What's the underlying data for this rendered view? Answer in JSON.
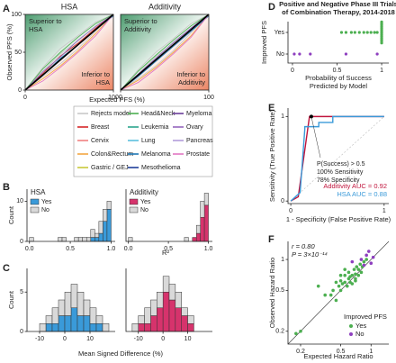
{
  "chart_data": [
    {
      "type": "curves",
      "panel": "A",
      "title": "HSA",
      "xlabel": "Expected PFS (%)",
      "ylabel": "Observed PFS (%)",
      "annotations": [
        [
          "Superior to",
          "HSA"
        ],
        [
          "Inferior to",
          "HSA"
        ]
      ],
      "xlim": [
        0,
        100
      ],
      "ylim": [
        0,
        100
      ],
      "xticks": [
        0,
        100
      ],
      "yticks": [
        0,
        50,
        100
      ],
      "x": [
        0,
        20,
        40,
        60,
        80,
        100
      ],
      "series": [
        {
          "color": "#c8c8c8",
          "values": [
            0,
            25,
            48,
            65,
            85,
            100
          ]
        },
        {
          "color": "#c8c8c8",
          "values": [
            0,
            18,
            35,
            55,
            78,
            100
          ]
        },
        {
          "color": "#c8c8c8",
          "values": [
            0,
            30,
            55,
            72,
            90,
            100
          ]
        },
        {
          "color": "#d62728",
          "values": [
            0,
            22,
            45,
            62,
            82,
            100
          ]
        },
        {
          "color": "#f4a742",
          "values": [
            0,
            15,
            32,
            52,
            75,
            100
          ]
        },
        {
          "color": "#4caf50",
          "values": [
            0,
            28,
            50,
            70,
            88,
            100
          ]
        },
        {
          "color": "#1f77b4",
          "values": [
            0,
            20,
            42,
            60,
            80,
            98
          ]
        },
        {
          "color": "#9467bd",
          "values": [
            0,
            24,
            44,
            66,
            84,
            100
          ]
        },
        {
          "color": "#e377c2",
          "values": [
            0,
            12,
            30,
            50,
            72,
            100
          ]
        }
      ]
    },
    {
      "type": "curves",
      "title": "Additivity",
      "annotations": [
        [
          "Superior to",
          "Additivity"
        ],
        [
          "Inferior to",
          "Additivity"
        ]
      ],
      "xlim": [
        0,
        100
      ],
      "ylim": [
        0,
        100
      ],
      "xticks": [
        0,
        100
      ],
      "x": [
        0,
        20,
        40,
        60,
        80,
        100
      ],
      "series": [
        {
          "color": "#c8c8c8",
          "values": [
            0,
            22,
            44,
            62,
            82,
            100
          ]
        },
        {
          "color": "#c8c8c8",
          "values": [
            0,
            15,
            32,
            52,
            76,
            100
          ]
        },
        {
          "color": "#c8c8c8",
          "values": [
            0,
            27,
            50,
            68,
            88,
            100
          ]
        },
        {
          "color": "#d62728",
          "values": [
            0,
            19,
            40,
            60,
            80,
            100
          ]
        },
        {
          "color": "#f4a742",
          "values": [
            0,
            13,
            30,
            50,
            72,
            100
          ]
        },
        {
          "color": "#4caf50",
          "values": [
            0,
            25,
            46,
            66,
            85,
            100
          ]
        },
        {
          "color": "#1f77b4",
          "values": [
            0,
            18,
            38,
            58,
            78,
            98
          ]
        },
        {
          "color": "#9467bd",
          "values": [
            0,
            21,
            42,
            63,
            82,
            100
          ]
        },
        {
          "color": "#e377c2",
          "values": [
            0,
            10,
            28,
            48,
            70,
            100
          ]
        }
      ]
    },
    {
      "type": "histogram",
      "panel": "B",
      "legend_title": "HSA",
      "xlabel": "R²",
      "ylabel": "Count",
      "xlim": [
        -0.03,
        1.05
      ],
      "ylim": [
        0,
        13
      ],
      "yticks": [
        0,
        10
      ],
      "xticks": [
        {
          "value": 0,
          "label": "0.0"
        },
        {
          "value": 0.5,
          "label": "0.5"
        },
        {
          "value": 1,
          "label": "1.0"
        }
      ],
      "bins": [
        0,
        0.05,
        0.1,
        0.15,
        0.2,
        0.25,
        0.3,
        0.35,
        0.4,
        0.45,
        0.5,
        0.55,
        0.6,
        0.65,
        0.7,
        0.75,
        0.8,
        0.85,
        0.9,
        0.95,
        1.0
      ],
      "series": [
        {
          "name": "Yes",
          "color": "#3a9ad9",
          "values": [
            0,
            0,
            0,
            0,
            0,
            0,
            0,
            0,
            0,
            0,
            0,
            0,
            0,
            0,
            0,
            1,
            1,
            2,
            5,
            8
          ]
        },
        {
          "name": "No",
          "color": "#d9d9d9",
          "values": [
            1,
            0,
            0,
            0,
            0,
            0,
            0,
            1,
            1,
            0,
            0,
            1,
            1,
            1,
            1,
            2,
            1,
            3,
            3,
            2
          ]
        }
      ]
    },
    {
      "type": "histogram",
      "legend_title": "Additivity",
      "xlim": [
        -0.03,
        1.05
      ],
      "ylim": [
        0,
        13
      ],
      "xticks": [
        {
          "value": 0,
          "label": "0.0"
        },
        {
          "value": 0.5,
          "label": "0.5"
        },
        {
          "value": 1,
          "label": "1.0"
        }
      ],
      "bins": [
        0,
        0.05,
        0.1,
        0.15,
        0.2,
        0.25,
        0.3,
        0.35,
        0.4,
        0.45,
        0.5,
        0.55,
        0.6,
        0.65,
        0.7,
        0.75,
        0.8,
        0.85,
        0.9,
        0.95,
        1.0
      ],
      "series": [
        {
          "name": "Yes",
          "color": "#d6336c",
          "values": [
            0,
            0,
            0,
            0,
            0,
            0,
            0,
            0,
            0,
            0,
            0,
            0,
            0,
            0,
            0,
            0,
            1,
            2,
            6,
            9
          ]
        },
        {
          "name": "No",
          "color": "#d9d9d9",
          "values": [
            1,
            0,
            0,
            0,
            0,
            0,
            0,
            0,
            0,
            0,
            0,
            0,
            0,
            0,
            1,
            0,
            0,
            2,
            4,
            3
          ]
        }
      ]
    },
    {
      "type": "histogram",
      "panel": "C",
      "xlabel": "Mean Signed Difference (%)",
      "ylabel": "Count",
      "xlim": [
        -15,
        20
      ],
      "ylim": [
        0,
        8
      ],
      "yticks": [
        0,
        5
      ],
      "xticks": [
        -10,
        0,
        10
      ],
      "bins": [
        -15,
        -12.5,
        -10,
        -7.5,
        -5,
        -2.5,
        0,
        2.5,
        5,
        7.5,
        10,
        12.5,
        15,
        17.5,
        20
      ],
      "series": [
        {
          "color": "#3a9ad9",
          "values": [
            0,
            0,
            0,
            1,
            1,
            2,
            2,
            3,
            2,
            2,
            1,
            1,
            0,
            0
          ]
        },
        {
          "color": "#d9d9d9",
          "values": [
            0,
            0,
            1,
            1,
            2,
            2,
            3,
            3,
            3,
            2,
            2,
            1,
            1,
            0
          ]
        }
      ]
    },
    {
      "type": "histogram",
      "xlim": [
        -15,
        20
      ],
      "ylim": [
        0,
        8
      ],
      "xticks": [
        -10,
        0,
        10
      ],
      "bins": [
        -15,
        -12.5,
        -10,
        -7.5,
        -5,
        -2.5,
        0,
        2.5,
        5,
        7.5,
        10,
        12.5,
        15,
        17.5,
        20
      ],
      "series": [
        {
          "color": "#d6336c",
          "values": [
            0,
            0,
            1,
            1,
            2,
            3,
            5,
            4,
            3,
            2,
            1,
            0,
            0,
            0
          ]
        },
        {
          "color": "#d9d9d9",
          "values": [
            0,
            1,
            1,
            2,
            2,
            2,
            2,
            2,
            2,
            1,
            1,
            0,
            0,
            0
          ]
        }
      ]
    },
    {
      "type": "strip",
      "panel": "D",
      "title": [
        "Positive and Negative Phase III Trials",
        "of Combination Therapy, 2014-2018"
      ],
      "xlabel": [
        "Probability of Success",
        "Predicted by Model"
      ],
      "ylabel": "Improved PFS",
      "xlim": [
        -0.05,
        1.08
      ],
      "xticks": [
        0,
        0.5,
        1
      ],
      "categories": [
        "No",
        "Yes"
      ],
      "colors": [
        "#8e3fbf",
        "#4caf50"
      ],
      "x": [
        [
          0.02,
          0.08,
          0.2,
          0.6,
          0.95
        ],
        [
          0.55,
          0.6,
          0.66,
          0.7,
          0.75,
          0.8,
          0.84,
          0.88,
          0.92,
          0.95,
          1,
          1,
          1,
          1,
          1,
          1,
          1,
          1,
          1,
          1,
          1,
          1,
          1,
          1
        ]
      ]
    },
    {
      "type": "roc",
      "panel": "E",
      "xlabel": "1 - Specificity (False Positive Rate)",
      "ylabel": "Sensitivity (True Positive Rate)",
      "annotations": [
        "P(Success) > 0.5",
        "100% Sensitivity",
        "78% Specificity"
      ],
      "xlim": [
        -0.03,
        1.05
      ],
      "ylim": [
        -0.03,
        1.1
      ],
      "xticks": [
        0,
        1
      ],
      "yticks": [
        0,
        1
      ],
      "marker": {
        "x": 0.22,
        "y": 1
      },
      "series": [
        {
          "name": "Additivity AUC = 0.92",
          "color": "#c0143c",
          "x": [
            0,
            0.08,
            0.2,
            1
          ],
          "values": [
            0,
            0.05,
            1,
            1
          ]
        },
        {
          "name": "HSA AUC = 0.88",
          "color": "#3a9ad9",
          "x": [
            0,
            0.1,
            0.15,
            0.15,
            0.3,
            0.3,
            0.45,
            0.45,
            1
          ],
          "values": [
            0,
            0.1,
            0.85,
            0.88,
            0.88,
            0.93,
            0.93,
            1,
            1
          ]
        }
      ]
    },
    {
      "type": "scatter",
      "panel": "F",
      "log": true,
      "xlabel": "Expected Hazard Ratio",
      "ylabel": "Observed Hazard Ratio",
      "annotations": [
        "r = 0.80",
        "P = 3×10⁻¹⁴"
      ],
      "legend_title": "Improved PFS",
      "xlim": [
        0.15,
        1.5
      ],
      "ylim": [
        0.15,
        1.5
      ],
      "xticks": [
        0.2,
        0.5,
        1
      ],
      "yticks": [
        0.2,
        0.5,
        1
      ],
      "series": [
        {
          "name": "Yes",
          "color": "#4caf50",
          "x": [
            0.18,
            0.2,
            0.3,
            0.35,
            0.4,
            0.42,
            0.45,
            0.48,
            0.5,
            0.5,
            0.52,
            0.55,
            0.55,
            0.58,
            0.6,
            0.6,
            0.62,
            0.65,
            0.65,
            0.68,
            0.7,
            0.7,
            0.72,
            0.75,
            0.75,
            0.78,
            0.8,
            0.82,
            0.85,
            0.9,
            0.62,
            0.55,
            0.45,
            0.7,
            0.5
          ],
          "values": [
            0.19,
            0.2,
            0.55,
            0.45,
            0.45,
            0.5,
            0.4,
            0.55,
            0.5,
            0.62,
            0.58,
            0.6,
            0.7,
            0.55,
            0.65,
            0.75,
            0.6,
            0.7,
            0.58,
            0.8,
            0.65,
            0.72,
            0.85,
            0.7,
            0.8,
            0.9,
            0.75,
            0.85,
            0.95,
            1.0,
            0.68,
            0.8,
            0.6,
            0.62,
            0.7
          ]
        },
        {
          "name": "No",
          "color": "#8e3fbf",
          "x": [
            0.65,
            0.8,
            0.9,
            1.0,
            1.05,
            0.95,
            0.85
          ],
          "values": [
            0.95,
            1.0,
            1.1,
            0.92,
            1.05,
            1.2,
            0.88
          ]
        }
      ]
    }
  ],
  "legend": [
    {
      "name": "Rejects model",
      "color": "#c8c8c8"
    },
    {
      "name": "Breast",
      "color": "#d62728"
    },
    {
      "name": "Cervix",
      "color": "#f08080"
    },
    {
      "name": "Colon&Rectum",
      "color": "#f4a742"
    },
    {
      "name": "Gastric / GEJ",
      "color": "#c8c83a"
    },
    {
      "name": "Head&Neck",
      "color": "#4caf50"
    },
    {
      "name": "Leukemia",
      "color": "#2ca58d"
    },
    {
      "name": "Lung",
      "color": "#5bc0de"
    },
    {
      "name": "Melanoma",
      "color": "#1f77b4"
    },
    {
      "name": "Mesothelioma",
      "color": "#1f3f99"
    },
    {
      "name": "Myeloma",
      "color": "#6a3d9a"
    },
    {
      "name": "Ovary",
      "color": "#9467bd"
    },
    {
      "name": "Pancreas",
      "color": "#b39ddb"
    },
    {
      "name": "Prostate",
      "color": "#e377c2"
    }
  ]
}
